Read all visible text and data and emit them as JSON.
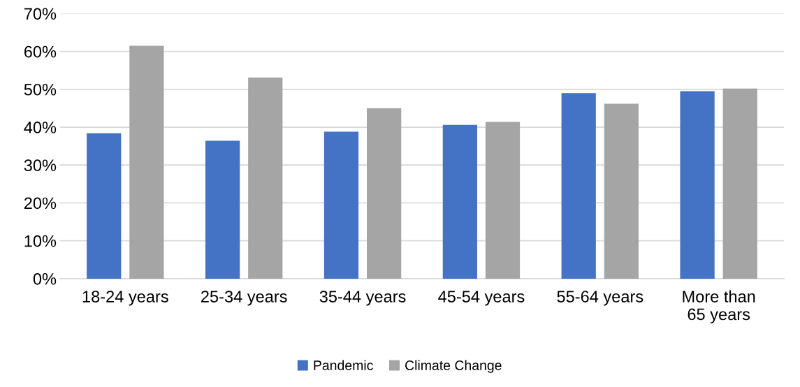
{
  "chart_data": {
    "type": "bar",
    "categories": [
      "18-24 years",
      "25-34 years",
      "35-44 years",
      "45-54 years",
      "55-64 years",
      "More than\n65 years"
    ],
    "series": [
      {
        "name": "Pandemic",
        "color": "#4472c4",
        "values": [
          38.4,
          36.4,
          38.8,
          40.6,
          49.0,
          49.5
        ]
      },
      {
        "name": "Climate Change",
        "color": "#a5a5a5",
        "values": [
          61.5,
          53.1,
          45.0,
          41.4,
          46.2,
          50.2
        ]
      }
    ],
    "ylim": [
      0,
      70
    ],
    "yticks": [
      {
        "value": 0,
        "label": "0%"
      },
      {
        "value": 10,
        "label": "10%"
      },
      {
        "value": 20,
        "label": "20%"
      },
      {
        "value": 30,
        "label": "30%"
      },
      {
        "value": 40,
        "label": "40%"
      },
      {
        "value": 50,
        "label": "50%"
      },
      {
        "value": 60,
        "label": "60%"
      },
      {
        "value": 70,
        "label": "70%"
      }
    ],
    "grid": "y",
    "legend": "bottom"
  }
}
